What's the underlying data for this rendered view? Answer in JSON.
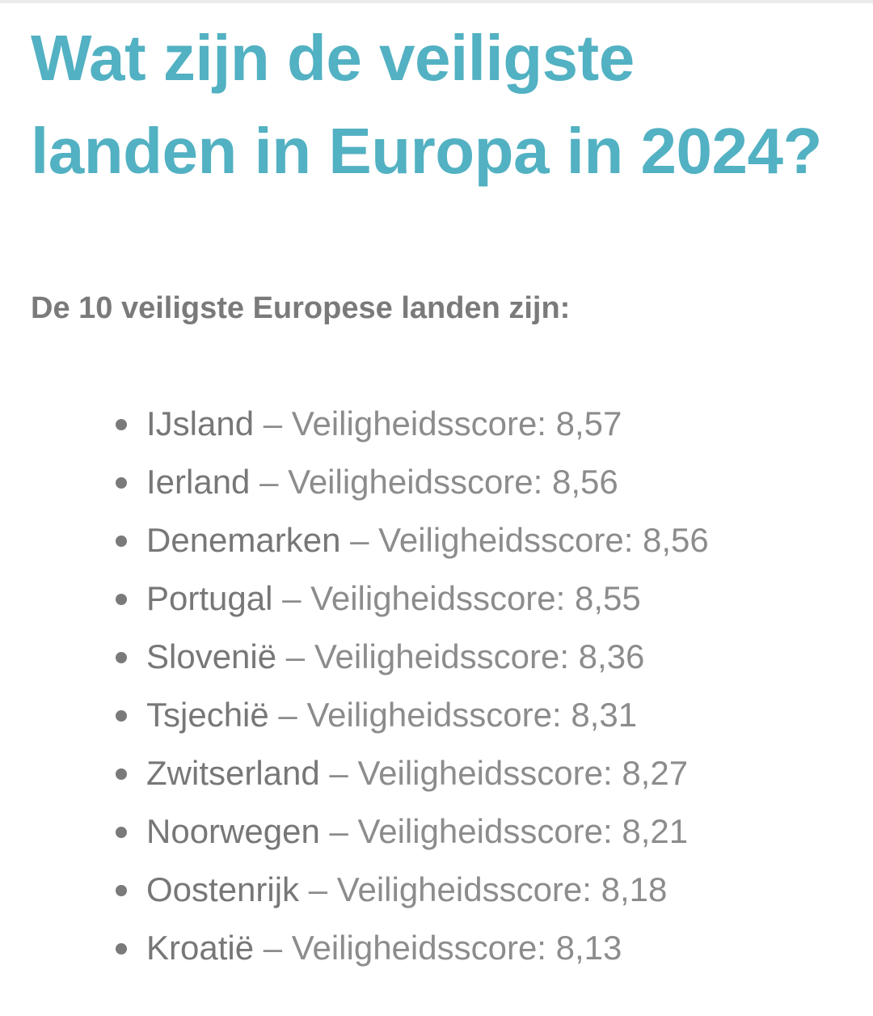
{
  "title": "Wat zijn de veiligste landen in Europa in 2024?",
  "subtitle": "De 10 veiligste Europese landen zijn:",
  "separator": " – ",
  "score_label": "Veiligheidsscore: ",
  "countries": [
    {
      "name": "IJsland",
      "score": "8,57"
    },
    {
      "name": "Ierland",
      "score": "8,56"
    },
    {
      "name": "Denemarken",
      "score": "8,56"
    },
    {
      "name": "Portugal",
      "score": "8,55"
    },
    {
      "name": "Slovenië",
      "score": "8,36"
    },
    {
      "name": "Tsjechië",
      "score": "8,31"
    },
    {
      "name": "Zwitserland",
      "score": "8,27"
    },
    {
      "name": "Noorwegen",
      "score": "8,21"
    },
    {
      "name": "Oostenrijk",
      "score": "8,18"
    },
    {
      "name": "Kroatië",
      "score": "8,13"
    }
  ],
  "colors": {
    "title": "#52b1c2",
    "text": "#7a7a7a"
  }
}
